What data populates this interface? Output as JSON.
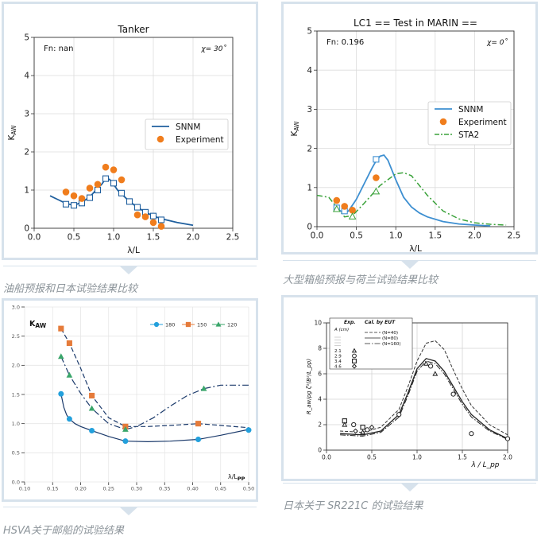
{
  "captions": {
    "tanker": "油船预报和日本试验结果比较",
    "container": "大型箱船预报与荷兰试验结果比较",
    "hsva": "HSVA关于邮船的试验结果",
    "sr221c": "日本关于 SR221C 的试验结果"
  },
  "chart_data": [
    {
      "id": "tanker",
      "type": "line",
      "title": "Tanker",
      "annotation_left": "Fn: nan",
      "annotation_right": "χ= 30˚",
      "xlabel": "λ/L",
      "ylabel": "K_AW",
      "xlim": [
        0,
        2.5
      ],
      "ylim": [
        0,
        5
      ],
      "xticks": [
        "0.0",
        "0.5",
        "1.0",
        "1.5",
        "2.0",
        "2.5"
      ],
      "yticks": [
        "0",
        "1",
        "2",
        "3",
        "4",
        "5"
      ],
      "grid": true,
      "legend_position": "center-right",
      "series": [
        {
          "name": "SNNM",
          "kind": "line",
          "color": "#1f5f9e",
          "x": [
            0.2,
            0.3,
            0.4,
            0.5,
            0.6,
            0.7,
            0.8,
            0.85,
            0.9,
            0.95,
            1.0,
            1.05,
            1.1,
            1.2,
            1.3,
            1.4,
            1.5,
            1.6,
            1.8,
            2.0
          ],
          "y": [
            0.85,
            0.75,
            0.65,
            0.6,
            0.68,
            0.82,
            1.05,
            1.15,
            1.3,
            1.28,
            1.15,
            1.0,
            0.9,
            0.7,
            0.55,
            0.42,
            0.32,
            0.25,
            0.15,
            0.08
          ]
        },
        {
          "name": "",
          "kind": "square-markers",
          "color": "#1f5f9e",
          "x": [
            0.4,
            0.5,
            0.6,
            0.7,
            0.8,
            0.9,
            1.0,
            1.1,
            1.2,
            1.3,
            1.4,
            1.5,
            1.6
          ],
          "y": [
            0.63,
            0.6,
            0.66,
            0.8,
            1.0,
            1.3,
            1.18,
            0.92,
            0.7,
            0.55,
            0.42,
            0.32,
            0.22
          ]
        },
        {
          "name": "Experiment",
          "kind": "circle-markers",
          "color": "#f07d1d",
          "x": [
            0.4,
            0.5,
            0.6,
            0.7,
            0.8,
            0.9,
            1.0,
            1.1,
            1.3,
            1.4,
            1.5,
            1.6
          ],
          "y": [
            0.95,
            0.85,
            0.78,
            1.05,
            1.15,
            1.6,
            1.53,
            1.27,
            0.35,
            0.3,
            0.15,
            0.05
          ]
        }
      ]
    },
    {
      "id": "container",
      "type": "line",
      "title": "LC1 == Test in MARIN ==",
      "annotation_left": "Fn: 0.196",
      "annotation_right": "χ= 0˚",
      "xlabel": "λ/L",
      "ylabel": "K_AW",
      "xlim": [
        0,
        2.5
      ],
      "ylim": [
        0,
        5
      ],
      "xticks": [
        "0.0",
        "0.5",
        "1.0",
        "1.5",
        "2.0",
        "2.5"
      ],
      "yticks": [
        "0",
        "1",
        "2",
        "3",
        "4",
        "5"
      ],
      "grid": true,
      "legend_position": "center-right",
      "series": [
        {
          "name": "SNNM",
          "kind": "line",
          "color": "#3d8fd1",
          "x": [
            0.25,
            0.3,
            0.35,
            0.4,
            0.5,
            0.6,
            0.7,
            0.75,
            0.8,
            0.85,
            0.9,
            1.0,
            1.1,
            1.2,
            1.3,
            1.4,
            1.6,
            1.8,
            2.0,
            2.2
          ],
          "y": [
            0.45,
            0.4,
            0.35,
            0.4,
            0.7,
            1.1,
            1.5,
            1.68,
            1.8,
            1.83,
            1.7,
            1.2,
            0.75,
            0.5,
            0.35,
            0.25,
            0.13,
            0.07,
            0.04,
            0.02
          ]
        },
        {
          "name": "",
          "kind": "square-markers",
          "color": "#3d8fd1",
          "x": [
            0.25,
            0.35,
            0.75
          ],
          "y": [
            0.48,
            0.4,
            1.72
          ]
        },
        {
          "name": "Experiment",
          "kind": "circle-markers",
          "color": "#f07d1d",
          "x": [
            0.25,
            0.35,
            0.45,
            0.75
          ],
          "y": [
            0.67,
            0.52,
            0.42,
            1.25
          ]
        },
        {
          "name": "STA2",
          "kind": "dashdot-line",
          "color": "#3aa23a",
          "x": [
            0.0,
            0.15,
            0.25,
            0.35,
            0.45,
            0.6,
            0.8,
            1.0,
            1.1,
            1.2,
            1.4,
            1.6,
            1.8,
            2.0,
            2.2,
            2.4
          ],
          "y": [
            0.8,
            0.75,
            0.5,
            0.25,
            0.28,
            0.6,
            1.05,
            1.35,
            1.38,
            1.3,
            0.8,
            0.4,
            0.2,
            0.1,
            0.06,
            0.04
          ]
        },
        {
          "name": "",
          "kind": "triangle-markers",
          "color": "#3aa23a",
          "x": [
            0.25,
            0.45,
            0.75
          ],
          "y": [
            0.45,
            0.26,
            0.9
          ]
        }
      ]
    },
    {
      "id": "hsva",
      "type": "line",
      "title": "",
      "ylabel": "K_AW",
      "xlabel": "λ/L_PP",
      "xlim": [
        0.1,
        0.5
      ],
      "ylim": [
        0,
        3
      ],
      "xticks": [
        "0.10",
        "0.15",
        "0.20",
        "0.25",
        "0.30",
        "0.35",
        "0.40",
        "0.45",
        "0.50"
      ],
      "yticks": [
        "0.0",
        "0.5",
        "1.0",
        "1.5",
        "2.0",
        "2.5",
        "3.0"
      ],
      "grid": true,
      "legend_position": "top-right",
      "series": [
        {
          "name": "180",
          "color": "#23a0dc",
          "marker": "circle",
          "line": "solid",
          "line_color": "#1b3a6b",
          "x": [
            0.165,
            0.18,
            0.22,
            0.28,
            0.41,
            0.5
          ],
          "y": [
            1.51,
            1.08,
            0.88,
            0.7,
            0.73,
            0.89
          ],
          "curve_x": [
            0.165,
            0.17,
            0.175,
            0.18,
            0.19,
            0.2,
            0.22,
            0.25,
            0.28,
            0.32,
            0.36,
            0.41,
            0.45,
            0.5
          ],
          "curve_y": [
            1.51,
            1.28,
            1.15,
            1.08,
            1.0,
            0.95,
            0.88,
            0.78,
            0.7,
            0.69,
            0.7,
            0.73,
            0.8,
            0.9
          ]
        },
        {
          "name": "150",
          "color": "#e57b3a",
          "marker": "square",
          "line": "dashed",
          "line_color": "#1b3a6b",
          "x": [
            0.165,
            0.18,
            0.22,
            0.28,
            0.41
          ],
          "y": [
            2.63,
            2.38,
            1.48,
            0.95,
            1.0
          ],
          "curve_x": [
            0.165,
            0.18,
            0.2,
            0.22,
            0.25,
            0.28,
            0.32,
            0.36,
            0.41,
            0.45,
            0.5
          ],
          "curve_y": [
            2.63,
            2.38,
            1.95,
            1.48,
            1.1,
            0.95,
            0.95,
            0.97,
            1.0,
            0.97,
            0.93
          ]
        },
        {
          "name": "120",
          "color": "#3aa66b",
          "marker": "triangle",
          "line": "dashdot",
          "line_color": "#1b3a6b",
          "x": [
            0.165,
            0.18,
            0.22,
            0.28,
            0.42
          ],
          "y": [
            2.15,
            1.83,
            1.26,
            0.9,
            1.6
          ],
          "curve_x": [
            0.165,
            0.18,
            0.2,
            0.22,
            0.25,
            0.28,
            0.3,
            0.33,
            0.36,
            0.39,
            0.42,
            0.45,
            0.5
          ],
          "curve_y": [
            2.15,
            1.83,
            1.52,
            1.26,
            1.0,
            0.9,
            0.95,
            1.1,
            1.3,
            1.48,
            1.6,
            1.66,
            1.66
          ]
        }
      ]
    },
    {
      "id": "sr221c",
      "type": "line",
      "title": "",
      "ylabel": "R_aw/ρg ζ²(B²/L_pp)",
      "xlabel": "λ / L_pp",
      "xlim": [
        0,
        2.0
      ],
      "ylim": [
        0,
        10
      ],
      "xticks": [
        "0.0",
        "0.5",
        "1.0",
        "1.5",
        "2.0"
      ],
      "yticks": [
        "0",
        "2",
        "4",
        "6",
        "8",
        "10"
      ],
      "grid": true,
      "legend_position": "top-left",
      "legend": {
        "header_exp": "Exp.",
        "header_cal": "Cal. by EUT",
        "unit": "A (cm)",
        "amplitudes": [
          "2.1",
          "2.9",
          "3.4",
          "4.6"
        ],
        "lines": [
          "(N=40)",
          "(N=80)",
          "(N=160)"
        ]
      },
      "series": [
        {
          "name": "(N=40)",
          "kind": "dashed-line",
          "color": "#333333",
          "x": [
            0.15,
            0.4,
            0.6,
            0.8,
            0.9,
            1.0,
            1.1,
            1.2,
            1.3,
            1.4,
            1.5,
            1.6,
            1.8,
            2.0
          ],
          "y": [
            1.5,
            1.4,
            1.8,
            3.2,
            5.0,
            7.0,
            8.4,
            8.6,
            7.9,
            6.3,
            4.8,
            3.5,
            2.0,
            1.2
          ]
        },
        {
          "name": "(N=80)",
          "kind": "solid-line",
          "color": "#222222",
          "x": [
            0.15,
            0.4,
            0.6,
            0.8,
            0.9,
            1.0,
            1.1,
            1.2,
            1.3,
            1.4,
            1.5,
            1.6,
            1.8,
            2.0
          ],
          "y": [
            1.3,
            1.2,
            1.5,
            2.8,
            4.5,
            6.4,
            7.2,
            7.0,
            6.2,
            5.0,
            3.8,
            2.8,
            1.6,
            0.9
          ]
        },
        {
          "name": "(N=160)",
          "kind": "dashdot-line",
          "color": "#222222",
          "x": [
            0.15,
            0.4,
            0.6,
            0.8,
            0.9,
            1.0,
            1.1,
            1.2,
            1.3,
            1.4,
            1.5,
            1.6,
            1.8,
            2.0
          ],
          "y": [
            1.2,
            1.1,
            1.4,
            2.6,
            4.3,
            6.2,
            7.0,
            6.8,
            6.0,
            4.8,
            3.6,
            2.6,
            1.5,
            0.85
          ]
        },
        {
          "name": "exp",
          "kind": "open-markers",
          "color": "#222222",
          "x": [
            0.2,
            0.2,
            0.3,
            0.32,
            0.4,
            0.4,
            0.45,
            0.5,
            0.8,
            1.1,
            1.15,
            1.2,
            1.4,
            1.6,
            2.0
          ],
          "y": [
            2.3,
            2.0,
            2.0,
            1.5,
            1.8,
            1.4,
            1.6,
            1.8,
            2.8,
            6.8,
            6.6,
            6.0,
            4.4,
            1.3,
            0.9
          ],
          "markers": [
            "square",
            "triangle",
            "circle",
            "diamond",
            "square",
            "triangle",
            "circle",
            "diamond",
            "circle",
            "triangle",
            "circle",
            "triangle",
            "circle",
            "circle",
            "circle"
          ]
        }
      ]
    }
  ]
}
